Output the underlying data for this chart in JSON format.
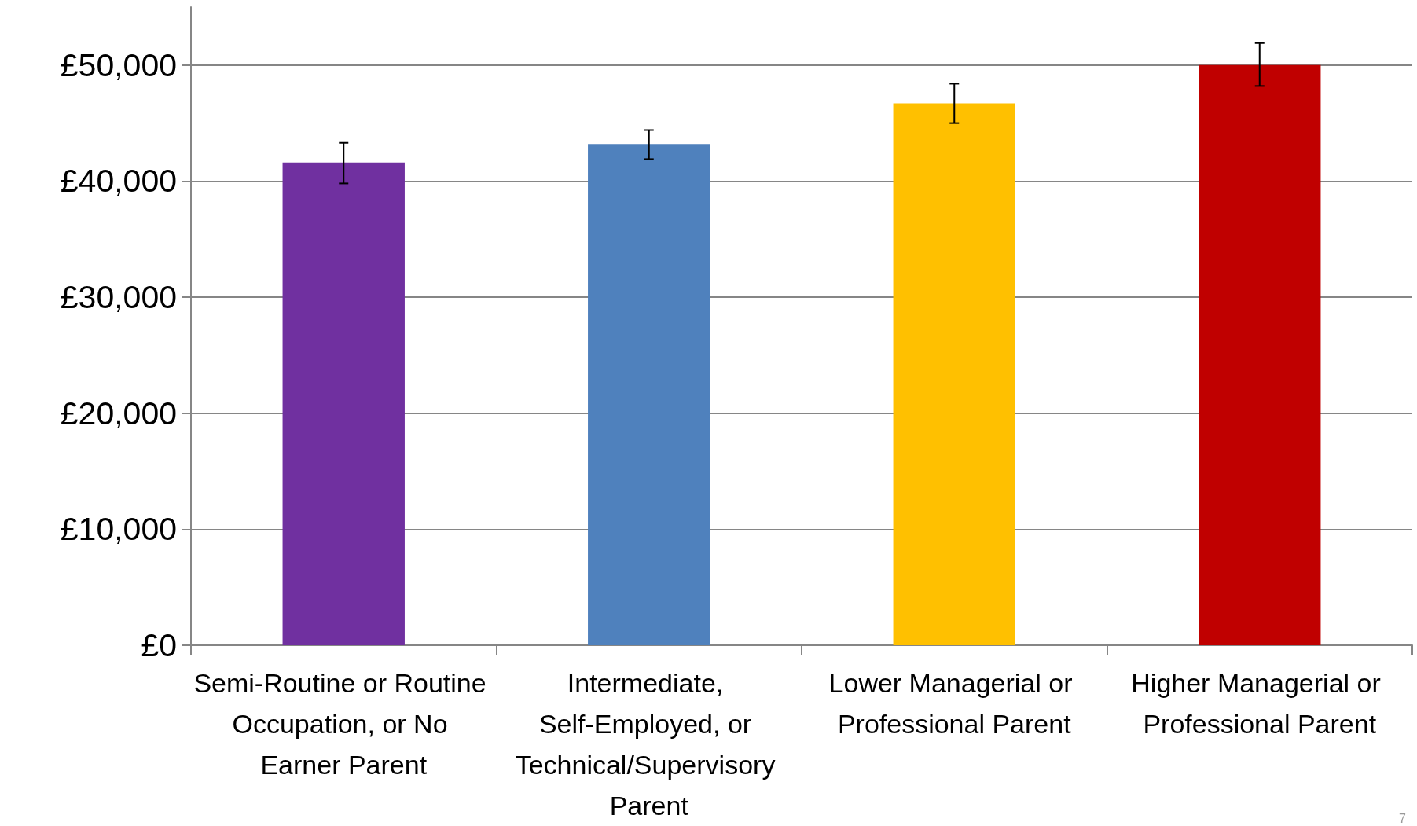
{
  "chart_data": {
    "type": "bar",
    "categories": [
      "Semi-Routine or Routine Occupation, or No Earner Parent",
      "Intermediate, Self-Employed, or Technical/Supervisory Parent",
      "Lower Managerial or Professional Parent",
      "Higher Managerial or Professional Parent"
    ],
    "values": [
      41600,
      43200,
      46700,
      50000
    ],
    "colors": [
      "#7030a0",
      "#4f81bd",
      "#ffc000",
      "#c00000"
    ],
    "errors": [
      [
        39800,
        43300
      ],
      [
        41900,
        44400
      ],
      [
        45000,
        48400
      ],
      [
        48200,
        51900
      ]
    ],
    "ylim": [
      0,
      55000
    ],
    "yticks": [
      {
        "value": 0,
        "label": "£0"
      },
      {
        "value": 10000,
        "label": "£10,000"
      },
      {
        "value": 20000,
        "label": "£20,000"
      },
      {
        "value": 30000,
        "label": "£30,000"
      },
      {
        "value": 40000,
        "label": "£40,000"
      },
      {
        "value": 50000,
        "label": "£50,000"
      }
    ],
    "grid": "y",
    "annotations": [
      "7"
    ]
  }
}
